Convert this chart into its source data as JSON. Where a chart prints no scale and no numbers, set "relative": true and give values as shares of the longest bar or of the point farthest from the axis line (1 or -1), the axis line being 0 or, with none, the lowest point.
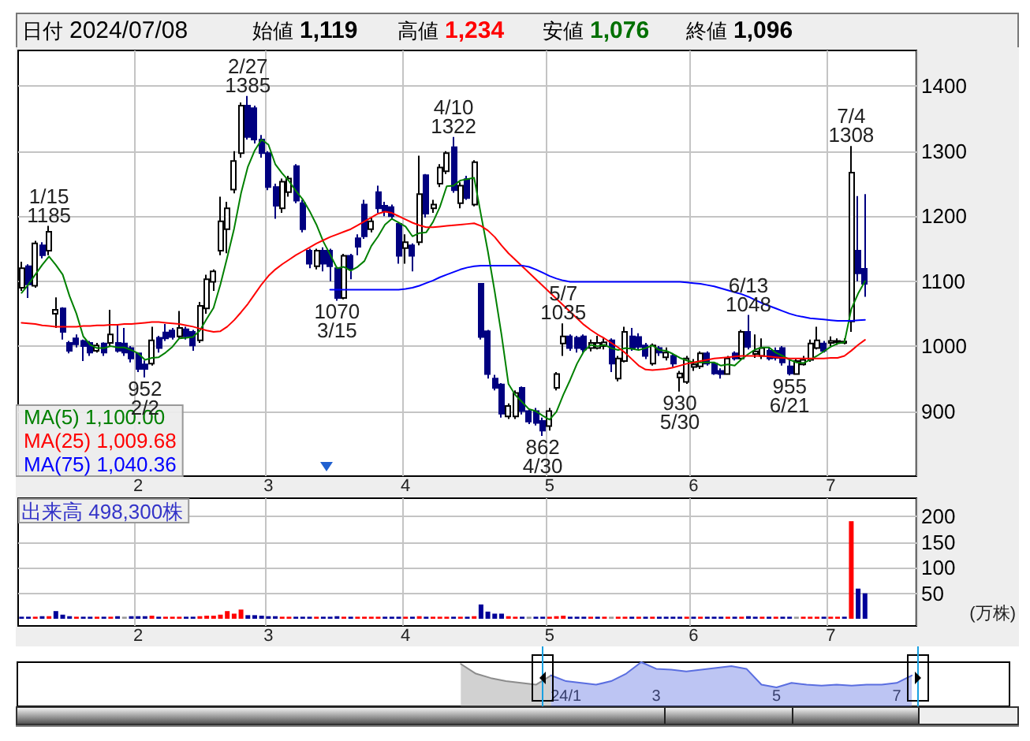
{
  "chart_data": [
    {
      "type": "candlestick",
      "categories": [
        null,
        null,
        null,
        null,
        null,
        null,
        null,
        null,
        null,
        null,
        null,
        null,
        null,
        null,
        null,
        null,
        null,
        "2",
        null,
        null,
        null,
        null,
        null,
        null,
        null,
        null,
        null,
        null,
        null,
        null,
        null,
        null,
        null,
        null,
        null,
        null,
        "3",
        null,
        null,
        null,
        null,
        null,
        null,
        null,
        null,
        null,
        null,
        null,
        null,
        null,
        null,
        null,
        null,
        null,
        null,
        null,
        "4",
        null,
        null,
        null,
        null,
        null,
        null,
        null,
        null,
        null,
        null,
        null,
        null,
        null,
        null,
        null,
        null,
        null,
        null,
        null,
        null,
        "5",
        null,
        null,
        null,
        null,
        null,
        null,
        null,
        null,
        null,
        null,
        null,
        null,
        null,
        null,
        null,
        null,
        null,
        null,
        null,
        null,
        "6",
        null,
        null,
        null,
        null,
        null,
        null,
        null,
        null,
        null,
        null,
        null,
        null,
        null,
        null,
        null,
        null,
        null,
        null,
        null,
        "7",
        null,
        null,
        null,
        null,
        null,
        null,
        null,
        null,
        null,
        null,
        null,
        null
      ],
      "ohlc": [
        [
          1090,
          1130,
          1085,
          1120
        ],
        [
          1123,
          1126,
          1074,
          1095
        ],
        [
          1093,
          1162,
          1090,
          1158
        ],
        [
          1155,
          1160,
          1135,
          1140
        ],
        [
          1147,
          1185,
          1140,
          1176
        ],
        [
          1050,
          1075,
          1028,
          1056
        ],
        [
          1058,
          1060,
          1010,
          1022
        ],
        [
          1005,
          1008,
          989,
          993
        ],
        [
          1012,
          1018,
          998,
          1003
        ],
        [
          1008,
          1010,
          977,
          1000
        ],
        [
          1005,
          1008,
          985,
          990
        ],
        [
          993,
          1005,
          990,
          1001
        ],
        [
          1004,
          1006,
          985,
          990
        ],
        [
          1005,
          1056,
          1000,
          1018
        ],
        [
          1005,
          1034,
          990,
          993
        ],
        [
          1004,
          1028,
          985,
          990
        ],
        [
          997,
          1000,
          975,
          981
        ],
        [
          989,
          990,
          960,
          965
        ],
        [
          972,
          978,
          952,
          965
        ],
        [
          973,
          1030,
          970,
          1009
        ],
        [
          1013,
          1016,
          990,
          997
        ],
        [
          1021,
          1034,
          1008,
          1012
        ],
        [
          1024,
          1028,
          1010,
          1014
        ],
        [
          1015,
          1054,
          1012,
          1028
        ],
        [
          1026,
          1030,
          1010,
          1015
        ],
        [
          1022,
          1025,
          993,
          1001
        ],
        [
          1009,
          1068,
          1005,
          1062
        ],
        [
          1058,
          1110,
          1050,
          1103
        ],
        [
          1099,
          1118,
          1085,
          1115
        ],
        [
          1147,
          1230,
          1140,
          1192
        ],
        [
          1180,
          1222,
          1143,
          1212
        ],
        [
          1241,
          1300,
          1235,
          1285
        ],
        [
          1297,
          1375,
          1290,
          1370
        ],
        [
          1370,
          1385,
          1318,
          1322
        ],
        [
          1366,
          1370,
          1312,
          1318
        ],
        [
          1318,
          1325,
          1290,
          1297
        ],
        [
          1297,
          1300,
          1240,
          1245
        ],
        [
          1245,
          1250,
          1196,
          1216
        ],
        [
          1212,
          1258,
          1205,
          1253
        ],
        [
          1237,
          1262,
          1230,
          1258
        ],
        [
          1277,
          1280,
          1220,
          1224
        ],
        [
          1220,
          1225,
          1175,
          1180
        ],
        [
          1147,
          1150,
          1120,
          1127
        ],
        [
          1123,
          1150,
          1118,
          1147
        ],
        [
          1147,
          1152,
          1115,
          1127
        ],
        [
          1147,
          1150,
          1100,
          1123
        ],
        [
          1120,
          1122,
          1070,
          1074
        ],
        [
          1074,
          1142,
          1072,
          1139
        ],
        [
          1139,
          1142,
          1103,
          1119
        ],
        [
          1166,
          1172,
          1140,
          1153
        ],
        [
          1218,
          1225,
          1165,
          1169
        ],
        [
          1180,
          1198,
          1175,
          1192
        ],
        [
          1237,
          1247,
          1205,
          1212
        ],
        [
          1216,
          1222,
          1200,
          1208
        ],
        [
          1214,
          1218,
          1195,
          1200
        ],
        [
          1188,
          1190,
          1127,
          1139
        ],
        [
          1151,
          1172,
          1127,
          1160
        ],
        [
          1155,
          1158,
          1115,
          1139
        ],
        [
          1160,
          1293,
          1155,
          1234
        ],
        [
          1263,
          1265,
          1198,
          1204
        ],
        [
          1212,
          1225,
          1205,
          1218
        ],
        [
          1250,
          1280,
          1245,
          1275
        ],
        [
          1269,
          1300,
          1265,
          1297
        ],
        [
          1306,
          1322,
          1236,
          1240
        ],
        [
          1220,
          1252,
          1212,
          1247
        ],
        [
          1257,
          1262,
          1225,
          1228
        ],
        [
          1218,
          1286,
          1215,
          1283
        ],
        [
          1096,
          1097,
          1010,
          1014
        ],
        [
          1023,
          1025,
          950,
          957
        ],
        [
          950,
          956,
          932,
          936
        ],
        [
          941,
          943,
          890,
          896
        ],
        [
          892,
          912,
          888,
          908
        ],
        [
          892,
          932,
          888,
          928
        ],
        [
          936,
          938,
          895,
          900
        ],
        [
          900,
          903,
          880,
          884
        ],
        [
          900,
          905,
          878,
          882
        ],
        [
          885,
          890,
          862,
          870
        ],
        [
          877,
          905,
          870,
          900
        ],
        [
          936,
          960,
          932,
          957
        ],
        [
          1004,
          1035,
          985,
          1015
        ],
        [
          1015,
          1018,
          993,
          997
        ],
        [
          1013,
          1016,
          990,
          997
        ],
        [
          1015,
          1018,
          990,
          995
        ],
        [
          997,
          1010,
          992,
          1005
        ],
        [
          997,
          1016,
          995,
          1005
        ],
        [
          1000,
          1012,
          995,
          1006
        ],
        [
          1009,
          1012,
          960,
          973
        ],
        [
          950,
          985,
          946,
          981
        ],
        [
          977,
          1030,
          975,
          1022
        ],
        [
          1015,
          1028,
          993,
          997
        ],
        [
          1014,
          1020,
          995,
          999
        ],
        [
          1001,
          1005,
          980,
          985
        ],
        [
          973,
          1004,
          970,
          1001
        ],
        [
          997,
          1000,
          985,
          990
        ],
        [
          983,
          998,
          978,
          990
        ],
        [
          985,
          988,
          968,
          973
        ],
        [
          952,
          962,
          930,
          958
        ],
        [
          945,
          985,
          942,
          981
        ],
        [
          968,
          980,
          962,
          972
        ],
        [
          969,
          992,
          965,
          989
        ],
        [
          989,
          992,
          970,
          973
        ],
        [
          973,
          976,
          956,
          958
        ],
        [
          962,
          966,
          950,
          957
        ],
        [
          957,
          985,
          956,
          981
        ],
        [
          989,
          992,
          978,
          981
        ],
        [
          981,
          1025,
          978,
          1022
        ],
        [
          1022,
          1048,
          995,
          999
        ],
        [
          988,
          1018,
          982,
          992
        ],
        [
          985,
          1012,
          980,
          997
        ],
        [
          993,
          997,
          978,
          981
        ],
        [
          993,
          998,
          978,
          982
        ],
        [
          997,
          1000,
          970,
          975
        ],
        [
          969,
          980,
          955,
          958
        ],
        [
          957,
          980,
          956,
          977
        ],
        [
          972,
          985,
          970,
          979
        ],
        [
          979,
          1010,
          976,
          1004
        ],
        [
          997,
          1030,
          995,
          1009
        ],
        [
          1004,
          1008,
          990,
          993
        ],
        [
          1005,
          1015,
          1000,
          1008
        ],
        [
          1006,
          1012,
          1002,
          1008
        ],
        [
          1005,
          1012,
          1003,
          1007
        ],
        [
          1038,
          1308,
          1022,
          1267
        ],
        [
          1147,
          1231,
          1100,
          1112
        ],
        [
          1119,
          1234,
          1076,
          1096
        ],
        null,
        null,
        null,
        null,
        null,
        null,
        null
      ],
      "colors": [
        "#ffffff",
        "#000080",
        "#ffffff",
        "#000080",
        "#ffffff",
        "#ffffff",
        "#000080",
        "#000080",
        "#000080",
        "#000080",
        "#000080",
        "#ffffff",
        "#000080",
        "#ffffff",
        "#000080",
        "#000080",
        "#000080",
        "#000080",
        "#000080",
        "#ffffff",
        "#000080",
        "#000080",
        "#000080",
        "#ffffff",
        "#000080",
        "#000080",
        "#ffffff",
        "#ffffff",
        "#ffffff",
        "#ffffff",
        "#ffffff",
        "#ffffff",
        "#ffffff",
        "#000080",
        "#000080",
        "#000080",
        "#000080",
        "#000080",
        "#ffffff",
        "#ffffff",
        "#000080",
        "#000080",
        "#000080",
        "#ffffff",
        "#000080",
        "#000080",
        "#000080",
        "#ffffff",
        "#000080",
        "#000080",
        "#000080",
        "#ffffff",
        "#000080",
        "#000080",
        "#000080",
        "#000080",
        "#ffffff",
        "#000080",
        "#ffffff",
        "#000080",
        "#ffffff",
        "#ffffff",
        "#ffffff",
        "#000080",
        "#ffffff",
        "#000080",
        "#ffffff",
        "#000080",
        "#000080",
        "#000080",
        "#000080",
        "#ffffff",
        "#ffffff",
        "#000080",
        "#000080",
        "#000080",
        "#000080",
        "#ffffff",
        "#ffffff",
        "#ffffff",
        "#000080",
        "#000080",
        "#000080",
        "#ffffff",
        "#ffffff",
        "#ffffff",
        "#000080",
        "#ffffff",
        "#ffffff",
        "#000080",
        "#000080",
        "#000080",
        "#ffffff",
        "#000080",
        "#ffffff",
        "#000080",
        "#ffffff",
        "#ffffff",
        "#ffffff",
        "#ffffff",
        "#000080",
        "#000080",
        "#000080",
        "#ffffff",
        "#000080",
        "#ffffff",
        "#000080",
        "#ffffff",
        "#ffffff",
        "#000080",
        "#000080",
        "#000080",
        "#000080",
        "#ffffff",
        "#ffffff",
        "#ffffff",
        "#ffffff",
        "#000080",
        "#ffffff",
        "#ffffff",
        "#ffffff",
        "#ffffff",
        "#000080",
        "#000080",
        null,
        null,
        null,
        null,
        null,
        null,
        null
      ],
      "series": [
        {
          "name": "MA(5) 1,100.00",
          "type": "line",
          "color": "#008000",
          "values": [
            1082,
            1095,
            1110,
            1125,
            1138,
            1125,
            1110,
            1077,
            1050,
            1015,
            1002,
            997,
            997,
            1000,
            998,
            998,
            994,
            989,
            979,
            982,
            983,
            990,
            999,
            1012,
            1013,
            1014,
            1024,
            1042,
            1059,
            1095,
            1137,
            1181,
            1235,
            1276,
            1301,
            1318,
            1310,
            1280,
            1266,
            1254,
            1239,
            1226,
            1208,
            1187,
            1161,
            1141,
            1120,
            1122,
            1116,
            1122,
            1131,
            1154,
            1169,
            1187,
            1196,
            1190,
            1184,
            1169,
            1174,
            1175,
            1191,
            1214,
            1246,
            1247,
            1255,
            1257,
            1259,
            1202,
            1146,
            1084,
            1017,
            942,
            925,
            914,
            903,
            900,
            893,
            887,
            899,
            925,
            948,
            973,
            992,
            1002,
            1000,
            1002,
            997,
            994,
            997,
            996,
            994,
            997,
            1001,
            994,
            993,
            988,
            982,
            978,
            975,
            975,
            975,
            975,
            970,
            972,
            970,
            980,
            988,
            995,
            998,
            998,
            990,
            985,
            979,
            975,
            974,
            979,
            985,
            992,
            999,
            1004,
            1006,
            1057,
            1081,
            1100,
            null,
            null,
            null,
            null,
            null,
            null,
            null
          ]
        },
        {
          "name": "MA(25) 1,009.68",
          "type": "line",
          "color": "#ff0000",
          "values": [
            1036,
            1035,
            1034,
            1032,
            1031,
            1030,
            1030,
            1030,
            1030,
            1031,
            1031,
            1032,
            1032,
            1033,
            1033,
            1034,
            1034,
            1035,
            1036,
            1037,
            1037,
            1036,
            1035,
            1034,
            1032,
            1030,
            1027,
            1024,
            1022,
            1023,
            1030,
            1040,
            1052,
            1065,
            1080,
            1095,
            1108,
            1118,
            1126,
            1133,
            1140,
            1146,
            1152,
            1158,
            1163,
            1168,
            1172,
            1176,
            1180,
            1186,
            1192,
            1198,
            1204,
            1207,
            1205,
            1200,
            1195,
            1190,
            1186,
            1183,
            1183,
            1184,
            1185,
            1186,
            1187,
            1188,
            1189,
            1185,
            1178,
            1168,
            1155,
            1143,
            1133,
            1123,
            1113,
            1103,
            1093,
            1083,
            1073,
            1063,
            1053,
            1043,
            1033,
            1025,
            1018,
            1012,
            1005,
            998,
            990,
            980,
            970,
            964,
            963,
            964,
            965,
            967,
            970,
            973,
            975,
            977,
            979,
            981,
            982,
            983,
            984,
            985,
            985,
            985,
            985,
            984,
            983,
            982,
            981,
            981,
            981,
            981,
            981,
            981,
            982,
            982,
            985,
            993,
            1002,
            1009.68,
            null,
            null,
            null,
            null,
            null,
            null,
            null
          ]
        },
        {
          "name": "MA(75) 1,040.36",
          "type": "line",
          "color": "#0000ff",
          "values": [
            null,
            null,
            null,
            null,
            null,
            null,
            null,
            null,
            null,
            null,
            null,
            null,
            null,
            null,
            null,
            null,
            null,
            null,
            null,
            null,
            null,
            null,
            null,
            null,
            null,
            null,
            null,
            null,
            null,
            null,
            null,
            null,
            null,
            null,
            null,
            null,
            null,
            null,
            null,
            null,
            null,
            null,
            null,
            null,
            null,
            1087,
            1087,
            1087,
            1087,
            1087,
            1087,
            1087,
            1087,
            1087,
            1087,
            1087,
            1088,
            1090,
            1093,
            1097,
            1101,
            1106,
            1110,
            1114,
            1118,
            1121,
            1123,
            1124,
            1124,
            1124,
            1124,
            1124,
            1124,
            1124,
            1122,
            1118,
            1113,
            1108,
            1104,
            1101,
            1099,
            1099,
            1099,
            1099,
            1099,
            1099,
            1099,
            1099,
            1099,
            1099,
            1099,
            1099,
            1099,
            1099,
            1099,
            1099,
            1099,
            1098,
            1097,
            1096,
            1094,
            1092,
            1089,
            1086,
            1083,
            1080,
            1076,
            1071,
            1066,
            1062,
            1058,
            1054,
            1050,
            1047,
            1045,
            1043,
            1042,
            1041,
            1040,
            1039,
            1039,
            1039,
            1040,
            1040.36,
            null,
            null,
            null,
            null,
            null,
            null,
            null
          ]
        }
      ],
      "ylim": [
        800,
        1455
      ],
      "yticks": [
        900,
        1000,
        1100,
        1200,
        1300,
        1400
      ],
      "grid": true,
      "legend": "bottom left",
      "annotations": [
        "日付",
        "2024/07/08",
        "始値",
        "1,119",
        "高値",
        "1,234",
        "安値",
        "1,076",
        "終値",
        "1,096",
        {
          "text": "1/15\n1185",
          "y": 1185
        },
        {
          "text": "952\n2/2",
          "y": 952
        },
        {
          "text": "2/27\n1385",
          "y": 1385
        },
        {
          "text": "1070\n3/15",
          "y": 1070
        },
        {
          "text": "4/10\n1322",
          "y": 1322
        },
        {
          "text": "862\n4/30",
          "y": 862
        },
        {
          "text": "5/7\n1035",
          "y": 1035
        },
        {
          "text": "930\n5/30",
          "y": 930
        },
        {
          "text": "6/13\n1048",
          "y": 1048
        },
        {
          "text": "955\n6/21",
          "y": 955
        },
        {
          "text": "7/4\n1308",
          "y": 1308
        }
      ]
    },
    {
      "type": "bar",
      "categories": [
        null,
        null,
        null,
        null,
        null,
        null,
        null,
        null,
        null,
        null,
        null,
        null,
        null,
        null,
        null,
        null,
        null,
        "2",
        null,
        null,
        null,
        null,
        null,
        null,
        null,
        null,
        null,
        null,
        null,
        null,
        null,
        null,
        null,
        null,
        null,
        null,
        "3",
        null,
        null,
        null,
        null,
        null,
        null,
        null,
        null,
        null,
        null,
        null,
        null,
        null,
        null,
        null,
        null,
        null,
        null,
        null,
        "4",
        null,
        null,
        null,
        null,
        null,
        null,
        null,
        null,
        null,
        null,
        null,
        null,
        null,
        null,
        null,
        null,
        null,
        null,
        null,
        null,
        "5",
        null,
        null,
        null,
        null,
        null,
        null,
        null,
        null,
        null,
        null,
        null,
        null,
        null,
        null,
        null,
        null,
        null,
        null,
        null,
        null,
        "6",
        null,
        null,
        null,
        null,
        null,
        null,
        null,
        null,
        null,
        null,
        null,
        null,
        null,
        null,
        null,
        null,
        null,
        null,
        null,
        "7",
        null,
        null,
        null,
        null,
        null,
        null,
        null,
        null,
        null,
        null,
        null,
        null
      ],
      "values": [
        4,
        4,
        4,
        5,
        5,
        15,
        8,
        5,
        4,
        4,
        4,
        4,
        4,
        4,
        5,
        4,
        5,
        5,
        5,
        6,
        4,
        4,
        4,
        4,
        4,
        4,
        5,
        6,
        6,
        8,
        15,
        10,
        18,
        7,
        7,
        6,
        5,
        5,
        4,
        4,
        4,
        4,
        4,
        4,
        4,
        4,
        5,
        4,
        4,
        4,
        4,
        4,
        4,
        4,
        4,
        4,
        4,
        4,
        5,
        4,
        4,
        4,
        4,
        4,
        4,
        4,
        5,
        28,
        14,
        10,
        10,
        5,
        4,
        4,
        4,
        4,
        4,
        4,
        5,
        6,
        4,
        4,
        4,
        4,
        4,
        4,
        4,
        4,
        4,
        4,
        4,
        4,
        4,
        4,
        4,
        4,
        4,
        4,
        4,
        4,
        4,
        4,
        4,
        4,
        4,
        4,
        5,
        4,
        4,
        4,
        4,
        4,
        4,
        4,
        4,
        4,
        4,
        4,
        4,
        4,
        4,
        191,
        59,
        49.83,
        null,
        null,
        null,
        null,
        null,
        null,
        null
      ],
      "colors": [
        "#000099",
        "#000099",
        "#ff0000",
        "#000099",
        "#ff0000",
        "#000099",
        "#000099",
        "#000099",
        "#ff0000",
        "#000099",
        "#000099",
        "#ff0000",
        "#000099",
        "#ff0000",
        "#000099",
        "#999999",
        "#000099",
        "#000099",
        "#000099",
        "#ff0000",
        "#000099",
        "#ff0000",
        "#ff0000",
        "#ff0000",
        "#000099",
        "#000099",
        "#ff0000",
        "#ff0000",
        "#ff0000",
        "#ff0000",
        "#ff0000",
        "#ff0000",
        "#ff0000",
        "#000099",
        "#000099",
        "#000099",
        "#000099",
        "#000099",
        "#ff0000",
        "#ff0000",
        "#000099",
        "#000099",
        "#000099",
        "#ff0000",
        "#000099",
        "#000099",
        "#000099",
        "#ff0000",
        "#000099",
        "#ff0000",
        "#ff0000",
        "#ff0000",
        "#ff0000",
        "#000099",
        "#000099",
        "#000099",
        "#ff0000",
        "#000099",
        "#ff0000",
        "#000099",
        "#ff0000",
        "#ff0000",
        "#ff0000",
        "#000099",
        "#ff0000",
        "#000099",
        "#ff0000",
        "#000099",
        "#000099",
        "#000099",
        "#000099",
        "#ff0000",
        "#ff0000",
        "#000099",
        "#999999",
        "#000099",
        "#000099",
        "#ff0000",
        "#ff0000",
        "#ff0000",
        "#000099",
        "#000099",
        "#000099",
        "#ff0000",
        "#000099",
        "#ff0000",
        "#999999",
        "#ff0000",
        "#ff0000",
        "#000099",
        "#ff0000",
        "#000099",
        "#ff0000",
        "#000099",
        "#000099",
        "#000099",
        "#000099",
        "#ff0000",
        "#000099",
        "#ff0000",
        "#000099",
        "#000099",
        "#000099",
        "#ff0000",
        "#000099",
        "#ff0000",
        "#000099",
        "#000099",
        "#ff0000",
        "#000099",
        "#ff0000",
        "#000099",
        "#000099",
        "#999999",
        "#ff0000",
        "#ff0000",
        "#ff0000",
        "#000099",
        "#ff0000",
        "#ff0000",
        "#000099",
        "#ff0000",
        "#000099",
        "#000099",
        null,
        null,
        null,
        null,
        null,
        null,
        null
      ],
      "ylim": [
        -14,
        236
      ],
      "yticks": [
        50,
        100,
        150,
        200
      ],
      "ylabel": "(万株)",
      "grid": true,
      "annotations": [
        "出来高 498,300株"
      ]
    },
    {
      "type": "area",
      "relative": true,
      "categories": [
        null,
        null,
        null,
        null,
        null,
        null,
        null,
        null,
        null,
        null,
        null,
        null,
        null,
        null,
        null,
        null,
        null,
        null,
        null,
        null,
        null,
        null,
        null,
        null,
        null,
        null,
        null,
        null,
        null,
        null,
        null,
        null,
        null,
        null,
        null,
        null,
        "24/1",
        null,
        null,
        null,
        null,
        null,
        "3",
        null,
        null,
        null,
        null,
        null,
        null,
        null,
        "5",
        null,
        null,
        null,
        null,
        null,
        null,
        null,
        "7",
        null,
        null,
        null,
        null,
        null,
        null,
        null
      ],
      "series": [
        {
          "color": "#8c8c8c",
          "values": [
            null,
            null,
            null,
            null,
            null,
            null,
            null,
            null,
            null,
            null,
            null,
            null,
            null,
            null,
            null,
            null,
            null,
            null,
            null,
            null,
            null,
            null,
            null,
            null,
            null,
            null,
            null,
            null,
            null,
            0.96,
            0.74,
            0.64,
            0.57,
            0.53,
            0.49,
            0.7,
            null,
            null,
            null,
            null,
            null,
            null,
            null,
            null,
            null,
            null,
            null,
            null,
            null,
            null,
            null,
            null,
            null,
            null,
            null,
            null,
            null,
            null,
            null,
            null,
            null,
            null,
            null,
            null,
            null,
            null
          ]
        },
        {
          "color": "#5a6ee0",
          "values": [
            null,
            null,
            null,
            null,
            null,
            null,
            null,
            null,
            null,
            null,
            null,
            null,
            null,
            null,
            null,
            null,
            null,
            null,
            null,
            null,
            null,
            null,
            null,
            null,
            null,
            null,
            null,
            null,
            null,
            null,
            null,
            null,
            null,
            null,
            null,
            0.7,
            0.57,
            0.53,
            0.49,
            0.57,
            0.74,
            1,
            0.85,
            0.83,
            0.79,
            0.83,
            0.87,
            0.91,
            0.85,
            0.49,
            0.43,
            0.53,
            0.49,
            0.47,
            0.49,
            0.47,
            0.49,
            0.49,
            0.53,
            0.7,
            null,
            null,
            null,
            null,
            null,
            null
          ]
        }
      ]
    }
  ]
}
